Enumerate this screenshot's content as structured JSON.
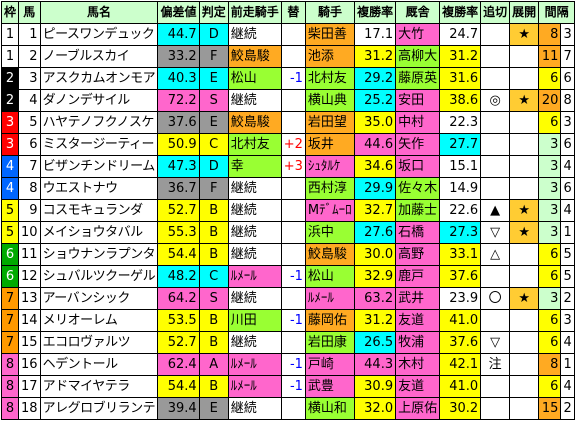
{
  "headers": {
    "waku": "枠",
    "num": "馬",
    "name": "馬名",
    "dev": "偏差値",
    "grade": "判定",
    "prev": "前走騎手",
    "swap": "替",
    "jockey": "騎手",
    "jrate": "複勝率",
    "stable": "厩舎",
    "srate": "複勝率",
    "chase": "追切",
    "dev2": "展開",
    "interval": "間隔"
  },
  "rows": [
    {
      "waku": "1",
      "num": "1",
      "name": "ピースワンデュック",
      "dev": "44.7",
      "grade": "D",
      "prev": "継続",
      "swap": "",
      "jockey": "柴田善",
      "jrate": "17.1",
      "stable": "大竹",
      "srate": "24.7",
      "chase": "",
      "tenkai": "★",
      "interval": "8",
      "mark": "3"
    },
    {
      "waku": "1",
      "num": "2",
      "name": "ノーブルスカイ",
      "dev": "33.2",
      "grade": "F",
      "prev": "鮫島駿",
      "swap": "",
      "jockey": "池添",
      "jrate": "31.2",
      "stable": "高柳大",
      "srate": "31.2",
      "chase": "",
      "tenkai": "",
      "interval": "11",
      "mark": "7"
    },
    {
      "waku": "2",
      "num": "3",
      "name": "アスクカムオンモア",
      "dev": "40.3",
      "grade": "E",
      "prev": "松山",
      "swap": "-1",
      "jockey": "北村友",
      "jrate": "29.2",
      "stable": "藤原英",
      "srate": "31.6",
      "chase": "",
      "tenkai": "",
      "interval": "6",
      "mark": "6"
    },
    {
      "waku": "2",
      "num": "4",
      "name": "ダノンデサイル",
      "dev": "72.2",
      "grade": "S",
      "prev": "継続",
      "swap": "",
      "jockey": "横山典",
      "jrate": "25.2",
      "stable": "安田",
      "srate": "38.6",
      "chase": "◎",
      "tenkai": "★",
      "interval": "20",
      "mark": "8"
    },
    {
      "waku": "3",
      "num": "5",
      "name": "ハヤテノフクノスケ",
      "dev": "37.6",
      "grade": "E",
      "prev": "鮫島駿",
      "swap": "",
      "jockey": "岩田望",
      "jrate": "35.0",
      "stable": "中村",
      "srate": "22.3",
      "chase": "",
      "tenkai": "",
      "interval": "6",
      "mark": "3"
    },
    {
      "waku": "3",
      "num": "6",
      "name": "ミスタージーティー",
      "dev": "50.9",
      "grade": "C",
      "prev": "北村友",
      "swap": "+2",
      "jockey": "坂井",
      "jrate": "44.6",
      "stable": "矢作",
      "srate": "27.7",
      "chase": "",
      "tenkai": "",
      "interval": "3",
      "mark": "6"
    },
    {
      "waku": "4",
      "num": "7",
      "name": "ビザンチンドリーム",
      "dev": "47.3",
      "grade": "D",
      "prev": "幸",
      "swap": "+3",
      "jockey": "ｼｭﾀﾙｹ",
      "jrate": "34.6",
      "stable": "坂口",
      "srate": "15.1",
      "chase": "",
      "tenkai": "",
      "interval": "3",
      "mark": "4"
    },
    {
      "waku": "4",
      "num": "8",
      "name": "ウエストナウ",
      "dev": "36.7",
      "grade": "F",
      "prev": "継続",
      "swap": "",
      "jockey": "西村淳",
      "jrate": "29.9",
      "stable": "佐々木",
      "srate": "14.9",
      "chase": "",
      "tenkai": "",
      "interval": "3",
      "mark": "6"
    },
    {
      "waku": "5",
      "num": "9",
      "name": "コスモキュランダ",
      "dev": "52.7",
      "grade": "B",
      "prev": "継続",
      "swap": "",
      "jockey": "Mﾃﾞﾑｰﾛ",
      "jrate": "32.7",
      "stable": "加藤士",
      "srate": "22.6",
      "chase": "▲",
      "tenkai": "★",
      "interval": "3",
      "mark": "4"
    },
    {
      "waku": "5",
      "num": "10",
      "name": "メイショウタバル",
      "dev": "55.3",
      "grade": "B",
      "prev": "継続",
      "swap": "",
      "jockey": "浜中",
      "jrate": "27.6",
      "stable": "石橋",
      "srate": "27.3",
      "chase": "▽",
      "tenkai": "★",
      "interval": "3",
      "mark": "1"
    },
    {
      "waku": "6",
      "num": "11",
      "name": "ショウナンラプンタ",
      "dev": "54.4",
      "grade": "B",
      "prev": "継続",
      "swap": "",
      "jockey": "鮫島駿",
      "jrate": "30.0",
      "stable": "高野",
      "srate": "33.1",
      "chase": "△",
      "tenkai": "",
      "interval": "6",
      "mark": "5"
    },
    {
      "waku": "6",
      "num": "12",
      "name": "シュバルツクーゲル",
      "dev": "48.2",
      "grade": "C",
      "prev": "ﾙﾒｰﾙ",
      "swap": "-1",
      "jockey": "松山",
      "jrate": "32.9",
      "stable": "鹿戸",
      "srate": "37.6",
      "chase": "",
      "tenkai": "",
      "interval": "6",
      "mark": "5"
    },
    {
      "waku": "7",
      "num": "13",
      "name": "アーバンシック",
      "dev": "64.2",
      "grade": "S",
      "prev": "継続",
      "swap": "",
      "jockey": "ﾙﾒｰﾙ",
      "jrate": "63.2",
      "stable": "武井",
      "srate": "23.9",
      "chase": "〇",
      "tenkai": "★",
      "interval": "3",
      "mark": "2"
    },
    {
      "waku": "7",
      "num": "14",
      "name": "メリオーレム",
      "dev": "53.5",
      "grade": "B",
      "prev": "川田",
      "swap": "-1",
      "jockey": "藤岡佑",
      "jrate": "31.2",
      "stable": "友道",
      "srate": "41.0",
      "chase": "",
      "tenkai": "",
      "interval": "6",
      "mark": "3"
    },
    {
      "waku": "7",
      "num": "15",
      "name": "エコロヴァルツ",
      "dev": "52.7",
      "grade": "B",
      "prev": "継続",
      "swap": "",
      "jockey": "岩田康",
      "jrate": "26.5",
      "stable": "牧浦",
      "srate": "37.6",
      "chase": "▽",
      "tenkai": "",
      "interval": "6",
      "mark": "4"
    },
    {
      "waku": "8",
      "num": "16",
      "name": "ヘデントール",
      "dev": "62.4",
      "grade": "A",
      "prev": "ﾙﾒｰﾙ",
      "swap": "-1",
      "jockey": "戸崎",
      "jrate": "44.3",
      "stable": "木村",
      "srate": "42.1",
      "chase": "注",
      "tenkai": "",
      "interval": "8",
      "mark": "1"
    },
    {
      "waku": "8",
      "num": "17",
      "name": "アドマイヤテラ",
      "dev": "54.4",
      "grade": "B",
      "prev": "ﾙﾒｰﾙ",
      "swap": "-1",
      "jockey": "武豊",
      "jrate": "30.9",
      "stable": "友道",
      "srate": "41.0",
      "chase": "",
      "tenkai": "",
      "interval": "6",
      "mark": "4"
    },
    {
      "waku": "8",
      "num": "18",
      "name": "アレグロブリランテ",
      "dev": "39.4",
      "grade": "E",
      "prev": "継続",
      "swap": "",
      "jockey": "横山和",
      "jrate": "32.0",
      "stable": "上原佑",
      "srate": "30.2",
      "chase": "",
      "tenkai": "",
      "interval": "15",
      "mark": "2"
    }
  ]
}
